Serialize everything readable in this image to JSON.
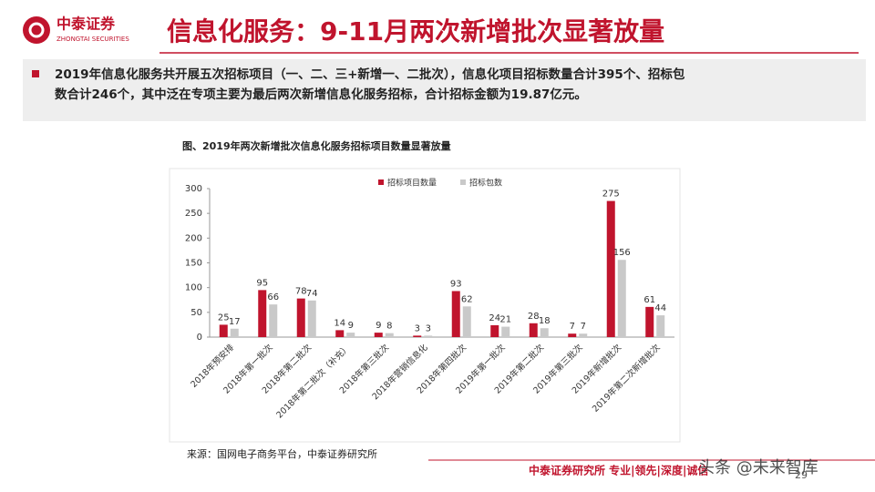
{
  "header": {
    "logo_cn": "中泰证券",
    "logo_en": "ZHONGTAI SECURITIES",
    "title": "信息化服务：9-11月两次新增批次显著放量"
  },
  "bullet": {
    "line1": "2019年信息化服务共开展五次招标项目（一、二、三+新增一、二批次），信息化项目招标数量合计395个、招标包",
    "line2": "数合计246个，其中泛在专项主要为最后两次新增信息化服务招标，合计招标金额为19.87亿元。"
  },
  "chart_data": {
    "type": "bar",
    "title": "图、2019年两次新增批次信息化服务招标项目数量显著放量",
    "categories": [
      "2018年预安排",
      "2018年第一批次",
      "2018年第二批次",
      "2018年第二批次（补充）",
      "2018年第三批次",
      "2018年营销信息化",
      "2018年第四批次",
      "2019年第一批次",
      "2019年第二批次",
      "2019年第三批次",
      "2019年新增批次",
      "2019年第二次新增批次"
    ],
    "series": [
      {
        "name": "招标项目数量",
        "color": "#c0142d",
        "values": [
          25,
          95,
          78,
          14,
          9,
          3,
          93,
          24,
          28,
          7,
          275,
          61
        ]
      },
      {
        "name": "招标包数",
        "color": "#c9c9c9",
        "values": [
          17,
          66,
          74,
          9,
          8,
          3,
          62,
          21,
          18,
          7,
          156,
          44
        ]
      }
    ],
    "ylim": [
      0,
      300
    ],
    "yticks": [
      0,
      50,
      100,
      150,
      200,
      250,
      300
    ],
    "grid": false,
    "legend": "top"
  },
  "source": "来源：国网电子商务平台，中泰证券研究所",
  "footer": {
    "text": "中泰证券研究所 专业|领先|深度|诚信",
    "watermark": "头条 @未来智库",
    "page": "29"
  }
}
